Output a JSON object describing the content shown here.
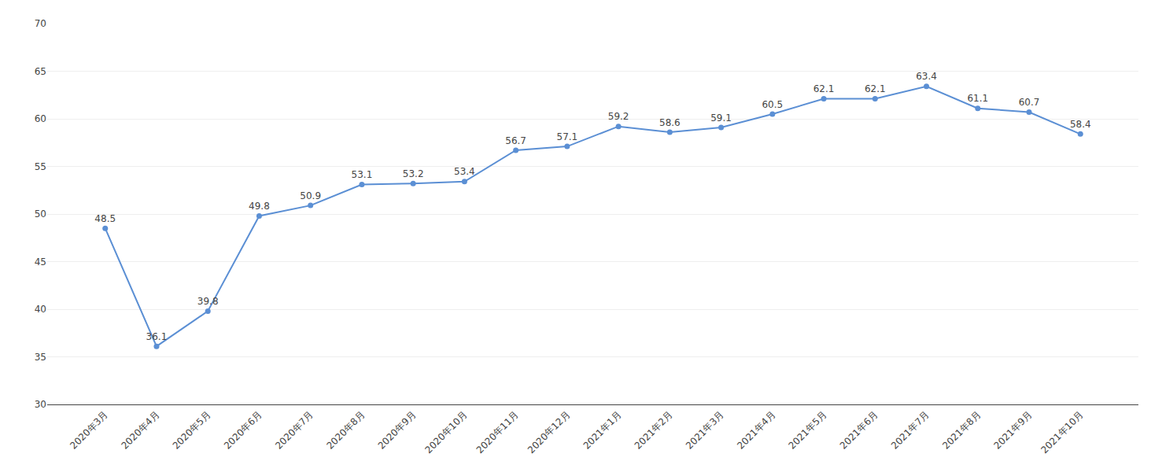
{
  "chart_data": {
    "type": "line",
    "categories": [
      "2020年3月",
      "2020年4月",
      "2020年5月",
      "2020年6月",
      "2020年7月",
      "2020年8月",
      "2020年9月",
      "2020年10月",
      "2020年11月",
      "2020年12月",
      "2021年1月",
      "2021年2月",
      "2021年3月",
      "2021年4月",
      "2021年5月",
      "2021年6月",
      "2021年7月",
      "2021年8月",
      "2021年9月",
      "2021年10月"
    ],
    "values": [
      48.5,
      36.1,
      39.8,
      49.8,
      50.9,
      53.1,
      53.2,
      53.4,
      56.7,
      57.1,
      59.2,
      58.6,
      59.1,
      60.5,
      62.1,
      62.1,
      63.4,
      61.1,
      60.7,
      58.4
    ],
    "color": "#5B8FD4",
    "marker": "circle",
    "ylim": [
      30,
      70
    ],
    "yticks": [
      30,
      35,
      40,
      45,
      50,
      55,
      60,
      65,
      70
    ],
    "grid": true,
    "data_labels": true
  }
}
